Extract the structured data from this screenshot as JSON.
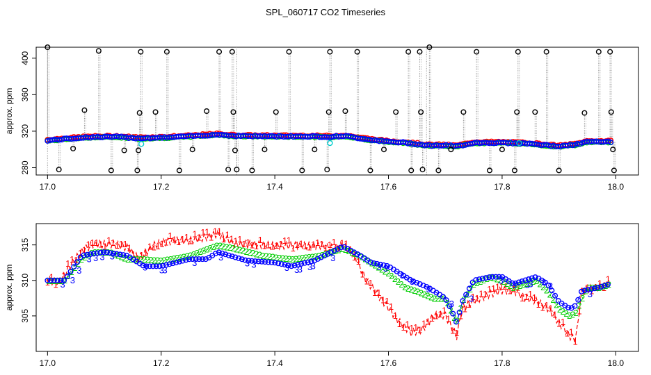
{
  "title": "SPL_060717  CO2 Timeseries",
  "chart_data": [
    {
      "type": "scatter",
      "panel": "top",
      "xlabel": "",
      "ylabel": "approx. ppm",
      "xlim": [
        16.98,
        18.04
      ],
      "ylim": [
        272,
        412
      ],
      "xticks": [
        17.0,
        17.2,
        17.4,
        17.6,
        17.8,
        18.0
      ],
      "xtick_labels": [
        "17.0",
        "17.2",
        "17.4",
        "17.6",
        "17.8",
        "18.0"
      ],
      "yticks": [
        280,
        320,
        360,
        400
      ],
      "ytick_labels": [
        "280",
        "320",
        "360",
        "400"
      ],
      "baseline_knots": [
        [
          17.0,
          309.5
        ],
        [
          17.03,
          311
        ],
        [
          17.07,
          313
        ],
        [
          17.12,
          313.5
        ],
        [
          17.16,
          312
        ],
        [
          17.2,
          312.5
        ],
        [
          17.25,
          314
        ],
        [
          17.3,
          316
        ],
        [
          17.33,
          314.5
        ],
        [
          17.4,
          314
        ],
        [
          17.45,
          314
        ],
        [
          17.5,
          313.5
        ],
        [
          17.52,
          314.5
        ],
        [
          17.56,
          311
        ],
        [
          17.6,
          308
        ],
        [
          17.63,
          307
        ],
        [
          17.67,
          304
        ],
        [
          17.7,
          304
        ],
        [
          17.72,
          303
        ],
        [
          17.75,
          307
        ],
        [
          17.8,
          307
        ],
        [
          17.85,
          306
        ],
        [
          17.88,
          304
        ],
        [
          17.9,
          303
        ],
        [
          17.93,
          305
        ],
        [
          17.95,
          308
        ],
        [
          17.99,
          308
        ]
      ],
      "spikes": [
        {
          "x": 17.0,
          "y": 412
        },
        {
          "x": 17.02,
          "y": 278
        },
        {
          "x": 17.045,
          "y": 301
        },
        {
          "x": 17.065,
          "y": 343
        },
        {
          "x": 17.09,
          "y": 408
        },
        {
          "x": 17.112,
          "y": 277
        },
        {
          "x": 17.135,
          "y": 299
        },
        {
          "x": 17.158,
          "y": 277
        },
        {
          "x": 17.16,
          "y": 299
        },
        {
          "x": 17.162,
          "y": 340
        },
        {
          "x": 17.164,
          "y": 407
        },
        {
          "x": 17.19,
          "y": 341
        },
        {
          "x": 17.21,
          "y": 407
        },
        {
          "x": 17.232,
          "y": 277
        },
        {
          "x": 17.255,
          "y": 300
        },
        {
          "x": 17.28,
          "y": 342
        },
        {
          "x": 17.302,
          "y": 407
        },
        {
          "x": 17.318,
          "y": 278
        },
        {
          "x": 17.325,
          "y": 407
        },
        {
          "x": 17.327,
          "y": 341
        },
        {
          "x": 17.33,
          "y": 299
        },
        {
          "x": 17.333,
          "y": 278
        },
        {
          "x": 17.36,
          "y": 277
        },
        {
          "x": 17.382,
          "y": 300
        },
        {
          "x": 17.402,
          "y": 341
        },
        {
          "x": 17.425,
          "y": 407
        },
        {
          "x": 17.448,
          "y": 277
        },
        {
          "x": 17.47,
          "y": 300
        },
        {
          "x": 17.492,
          "y": 278
        },
        {
          "x": 17.495,
          "y": 341
        },
        {
          "x": 17.497,
          "y": 407
        },
        {
          "x": 17.524,
          "y": 342
        },
        {
          "x": 17.545,
          "y": 407
        },
        {
          "x": 17.568,
          "y": 277
        },
        {
          "x": 17.592,
          "y": 300
        },
        {
          "x": 17.613,
          "y": 341
        },
        {
          "x": 17.635,
          "y": 407
        },
        {
          "x": 17.64,
          "y": 277
        },
        {
          "x": 17.655,
          "y": 407
        },
        {
          "x": 17.657,
          "y": 341
        },
        {
          "x": 17.66,
          "y": 278
        },
        {
          "x": 17.672,
          "y": 412
        },
        {
          "x": 17.688,
          "y": 277
        },
        {
          "x": 17.71,
          "y": 300
        },
        {
          "x": 17.732,
          "y": 341
        },
        {
          "x": 17.755,
          "y": 407
        },
        {
          "x": 17.778,
          "y": 277
        },
        {
          "x": 17.8,
          "y": 300
        },
        {
          "x": 17.822,
          "y": 277
        },
        {
          "x": 17.826,
          "y": 341
        },
        {
          "x": 17.828,
          "y": 407
        },
        {
          "x": 17.858,
          "y": 341
        },
        {
          "x": 17.878,
          "y": 407
        },
        {
          "x": 17.9,
          "y": 277
        },
        {
          "x": 17.945,
          "y": 340
        },
        {
          "x": 17.97,
          "y": 407
        },
        {
          "x": 17.99,
          "y": 407
        },
        {
          "x": 17.992,
          "y": 341
        },
        {
          "x": 17.995,
          "y": 300
        },
        {
          "x": 17.997,
          "y": 277
        }
      ],
      "cyan_points": [
        {
          "x": 17.165,
          "y": 306
        },
        {
          "x": 17.497,
          "y": 307
        },
        {
          "x": 17.83,
          "y": 307
        }
      ],
      "segment_breaks": [
        17.0,
        17.333,
        17.667
      ],
      "series": [
        {
          "name": "1",
          "color": "#ff0000"
        },
        {
          "name": "2",
          "color": "#00cd00"
        },
        {
          "name": "3",
          "color": "#0000ff"
        }
      ]
    },
    {
      "type": "line",
      "panel": "bottom",
      "xlabel": "",
      "ylabel": "approx. ppm",
      "xlim": [
        16.98,
        18.04
      ],
      "ylim": [
        300,
        318
      ],
      "xticks": [
        17.0,
        17.2,
        17.4,
        17.6,
        17.8,
        18.0
      ],
      "xtick_labels": [
        "17.0",
        "17.2",
        "17.4",
        "17.6",
        "17.8",
        "18.0"
      ],
      "yticks": [
        305,
        310,
        315
      ],
      "ytick_labels": [
        "305",
        "310",
        "315"
      ],
      "series": [
        {
          "name": "1",
          "color": "#ff0000",
          "knots": [
            [
              17.0,
              310
            ],
            [
              17.02,
              309.5
            ],
            [
              17.04,
              312
            ],
            [
              17.06,
              314
            ],
            [
              17.08,
              315
            ],
            [
              17.12,
              315
            ],
            [
              17.14,
              314.5
            ],
            [
              17.16,
              313
            ],
            [
              17.19,
              315
            ],
            [
              17.22,
              315.5
            ],
            [
              17.25,
              315.5
            ],
            [
              17.28,
              316
            ],
            [
              17.3,
              316.5
            ],
            [
              17.33,
              315
            ],
            [
              17.36,
              315
            ],
            [
              17.4,
              314.8
            ],
            [
              17.45,
              314.8
            ],
            [
              17.48,
              314.8
            ],
            [
              17.5,
              314.5
            ],
            [
              17.52,
              314.8
            ],
            [
              17.54,
              313.5
            ],
            [
              17.56,
              310
            ],
            [
              17.58,
              308
            ],
            [
              17.6,
              306
            ],
            [
              17.62,
              304
            ],
            [
              17.64,
              302.5
            ],
            [
              17.66,
              303
            ],
            [
              17.68,
              305
            ],
            [
              17.7,
              305
            ],
            [
              17.72,
              302
            ],
            [
              17.73,
              306
            ],
            [
              17.75,
              307
            ],
            [
              17.78,
              308
            ],
            [
              17.8,
              308.5
            ],
            [
              17.82,
              308.5
            ],
            [
              17.84,
              307.5
            ],
            [
              17.86,
              307
            ],
            [
              17.88,
              306
            ],
            [
              17.9,
              304
            ],
            [
              17.92,
              302
            ],
            [
              17.93,
              301.5
            ],
            [
              17.94,
              308.5
            ],
            [
              17.97,
              309
            ],
            [
              17.99,
              309.5
            ]
          ]
        },
        {
          "name": "2",
          "color": "#00cd00",
          "knots": [
            [
              17.0,
              310
            ],
            [
              17.03,
              310
            ],
            [
              17.06,
              313
            ],
            [
              17.08,
              314
            ],
            [
              17.11,
              314
            ],
            [
              17.14,
              313
            ],
            [
              17.17,
              313
            ],
            [
              17.2,
              312.8
            ],
            [
              17.25,
              313.5
            ],
            [
              17.3,
              315
            ],
            [
              17.33,
              314.5
            ],
            [
              17.38,
              313.5
            ],
            [
              17.43,
              313
            ],
            [
              17.48,
              313.5
            ],
            [
              17.5,
              314
            ],
            [
              17.52,
              314.5
            ],
            [
              17.55,
              313.5
            ],
            [
              17.58,
              312
            ],
            [
              17.6,
              311
            ],
            [
              17.63,
              309
            ],
            [
              17.65,
              308.5
            ],
            [
              17.68,
              307.5
            ],
            [
              17.7,
              307.5
            ],
            [
              17.72,
              304
            ],
            [
              17.73,
              307
            ],
            [
              17.75,
              309.5
            ],
            [
              17.78,
              310.5
            ],
            [
              17.8,
              310
            ],
            [
              17.82,
              309
            ],
            [
              17.84,
              309.5
            ],
            [
              17.86,
              310
            ],
            [
              17.88,
              308.5
            ],
            [
              17.9,
              306
            ],
            [
              17.92,
              305
            ],
            [
              17.93,
              305.5
            ],
            [
              17.95,
              309
            ],
            [
              17.97,
              309
            ],
            [
              17.99,
              309.5
            ]
          ]
        },
        {
          "name": "3",
          "color": "#0000ff",
          "knots": [
            [
              17.0,
              310
            ],
            [
              17.03,
              310
            ],
            [
              17.06,
              313.5
            ],
            [
              17.1,
              314
            ],
            [
              17.14,
              313.5
            ],
            [
              17.17,
              312
            ],
            [
              17.2,
              312
            ],
            [
              17.25,
              313
            ],
            [
              17.28,
              313
            ],
            [
              17.3,
              314
            ],
            [
              17.32,
              313.5
            ],
            [
              17.35,
              312.8
            ],
            [
              17.4,
              312.5
            ],
            [
              17.43,
              312
            ],
            [
              17.47,
              312.8
            ],
            [
              17.5,
              314
            ],
            [
              17.52,
              314.8
            ],
            [
              17.55,
              313.5
            ],
            [
              17.57,
              312.5
            ],
            [
              17.6,
              312
            ],
            [
              17.62,
              311
            ],
            [
              17.64,
              310
            ],
            [
              17.67,
              309
            ],
            [
              17.7,
              307.5
            ],
            [
              17.71,
              306
            ],
            [
              17.72,
              304
            ],
            [
              17.73,
              307
            ],
            [
              17.75,
              310
            ],
            [
              17.78,
              310.5
            ],
            [
              17.8,
              310.5
            ],
            [
              17.82,
              309.5
            ],
            [
              17.84,
              310
            ],
            [
              17.86,
              310.5
            ],
            [
              17.88,
              309.5
            ],
            [
              17.9,
              307
            ],
            [
              17.92,
              306
            ],
            [
              17.93,
              306.5
            ],
            [
              17.94,
              308.5
            ],
            [
              17.97,
              309
            ],
            [
              17.99,
              309.5
            ]
          ]
        }
      ]
    }
  ]
}
